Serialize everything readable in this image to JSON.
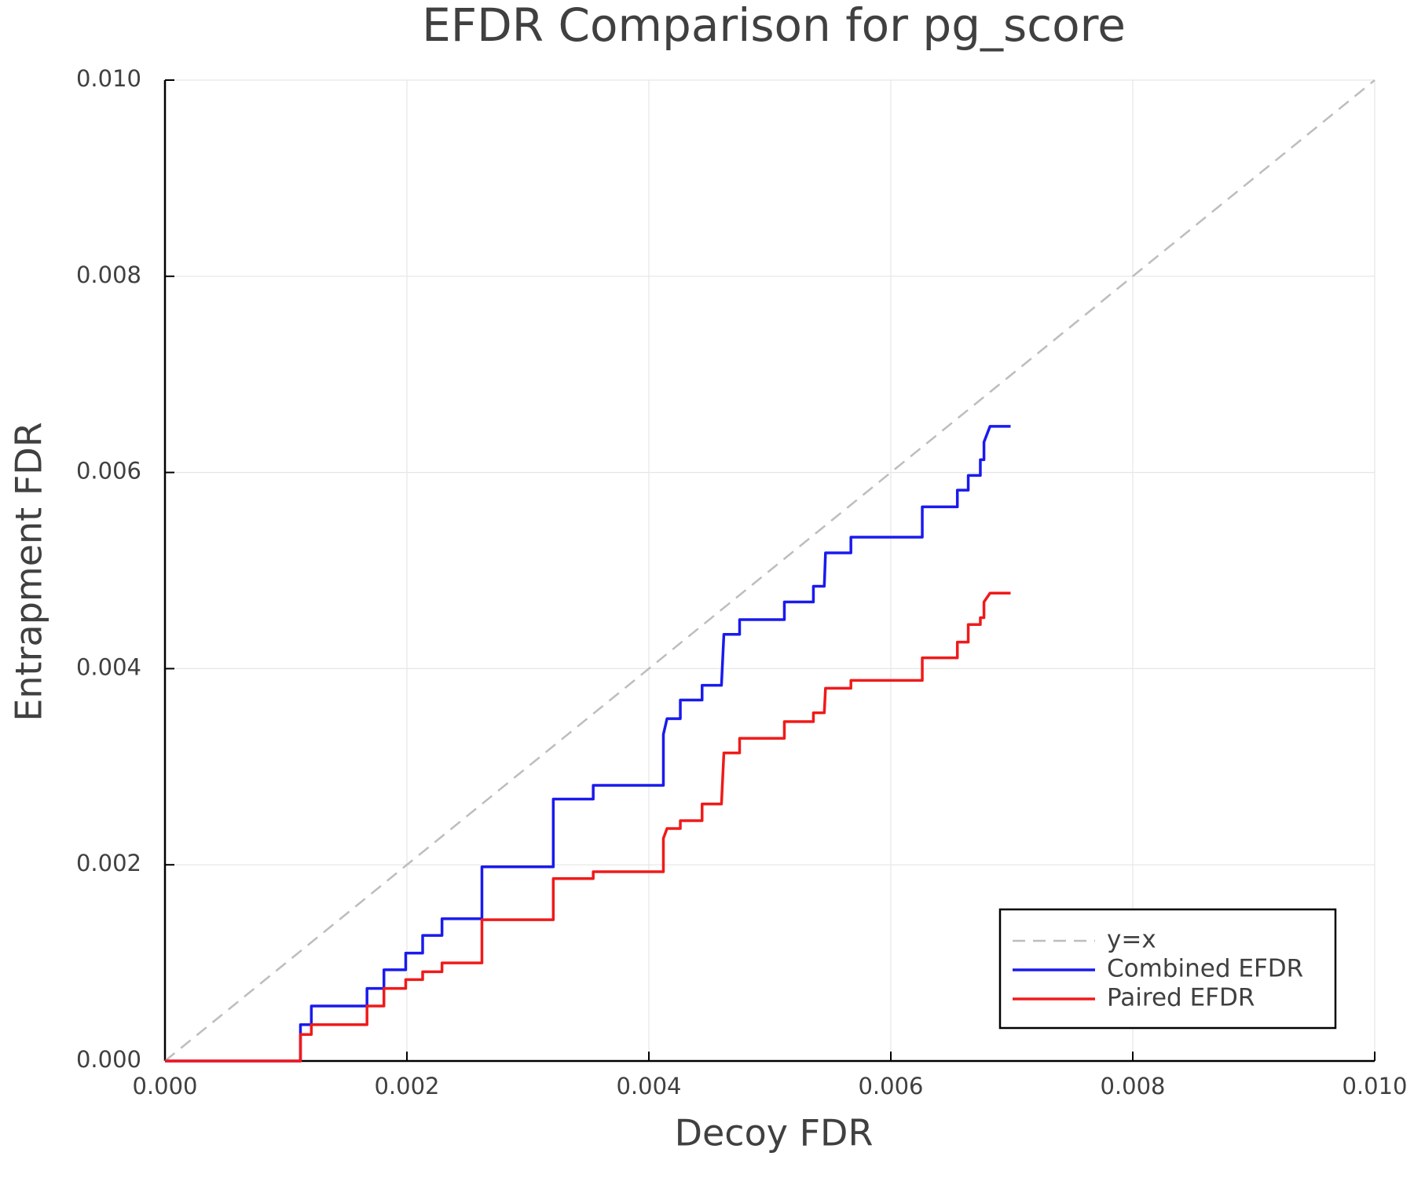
{
  "chart_data": {
    "type": "line",
    "title": "EFDR Comparison for pg_score",
    "x_label": "Decoy FDR",
    "y_label": "Entrapment FDR",
    "xlim": [
      0,
      0.01
    ],
    "ylim": [
      0,
      0.01
    ],
    "xticks": [
      {
        "value": 0,
        "label": "0.000"
      },
      {
        "value": 0.002,
        "label": "0.002"
      },
      {
        "value": 0.004,
        "label": "0.004"
      },
      {
        "value": 0.006,
        "label": "0.006"
      },
      {
        "value": 0.008,
        "label": "0.008"
      },
      {
        "value": 0.01,
        "label": "0.010"
      }
    ],
    "yticks": [
      {
        "value": 0,
        "label": "0.000"
      },
      {
        "value": 0.002,
        "label": "0.002"
      },
      {
        "value": 0.004,
        "label": "0.004"
      },
      {
        "value": 0.006,
        "label": "0.006"
      },
      {
        "value": 0.008,
        "label": "0.008"
      },
      {
        "value": 0.01,
        "label": "0.010"
      }
    ],
    "grid": true,
    "legend": "lower right",
    "series": [
      {
        "name": "y=x",
        "color": "#bdbdbd",
        "dashed": true,
        "x": [
          0,
          0.01
        ],
        "values": [
          0,
          0.01
        ]
      },
      {
        "name": "Combined EFDR",
        "color": "#1a1aee",
        "dashed": false,
        "x": [
          0,
          0.00112,
          0.00112,
          0.00121,
          0.00121,
          0.00167,
          0.00167,
          0.00181,
          0.00181,
          0.00199,
          0.00199,
          0.00213,
          0.00213,
          0.00229,
          0.00229,
          0.00262,
          0.00262,
          0.00321,
          0.00321,
          0.00354,
          0.00354,
          0.00412,
          0.00412,
          0.00415,
          0.00426,
          0.00426,
          0.00444,
          0.00444,
          0.0046,
          0.00462,
          0.00475,
          0.00475,
          0.00512,
          0.00512,
          0.00536,
          0.00536,
          0.00545,
          0.00546,
          0.00567,
          0.00567,
          0.00626,
          0.00626,
          0.00655,
          0.00655,
          0.00664,
          0.00664,
          0.00674,
          0.00674,
          0.00677,
          0.00677,
          0.00682,
          0.00699
        ],
        "values": [
          0,
          0,
          0.00037,
          0.00037,
          0.00056,
          0.00056,
          0.00074,
          0.00074,
          0.00093,
          0.00093,
          0.0011,
          0.0011,
          0.00128,
          0.00128,
          0.00145,
          0.00145,
          0.00198,
          0.00198,
          0.00267,
          0.00267,
          0.00281,
          0.00281,
          0.00333,
          0.00349,
          0.00349,
          0.00368,
          0.00368,
          0.00383,
          0.00383,
          0.00435,
          0.00435,
          0.0045,
          0.0045,
          0.00468,
          0.00468,
          0.00484,
          0.00484,
          0.00518,
          0.00518,
          0.00534,
          0.00534,
          0.00565,
          0.00565,
          0.00582,
          0.00582,
          0.00597,
          0.00597,
          0.00613,
          0.00613,
          0.00631,
          0.00647,
          0.00647
        ]
      },
      {
        "name": "Paired EFDR",
        "color": "#f01a1a",
        "dashed": false,
        "x": [
          0,
          0.00112,
          0.00112,
          0.00121,
          0.00121,
          0.00167,
          0.00167,
          0.00181,
          0.00181,
          0.00199,
          0.00199,
          0.00213,
          0.00213,
          0.00229,
          0.00229,
          0.00262,
          0.00262,
          0.00321,
          0.00321,
          0.00354,
          0.00354,
          0.00412,
          0.00412,
          0.00415,
          0.00426,
          0.00426,
          0.00444,
          0.00444,
          0.0046,
          0.00462,
          0.00475,
          0.00475,
          0.00512,
          0.00512,
          0.00536,
          0.00536,
          0.00545,
          0.00546,
          0.00567,
          0.00567,
          0.00626,
          0.00626,
          0.00655,
          0.00655,
          0.00664,
          0.00664,
          0.00674,
          0.00674,
          0.00677,
          0.00677,
          0.00682,
          0.00699
        ],
        "values": [
          0,
          0,
          0.00027,
          0.00027,
          0.00037,
          0.00037,
          0.00056,
          0.00056,
          0.00074,
          0.00074,
          0.00083,
          0.00083,
          0.00091,
          0.00091,
          0.001,
          0.001,
          0.00144,
          0.00144,
          0.00186,
          0.00186,
          0.00193,
          0.00193,
          0.00227,
          0.00237,
          0.00237,
          0.00245,
          0.00245,
          0.00262,
          0.00262,
          0.00314,
          0.00314,
          0.00329,
          0.00329,
          0.00346,
          0.00346,
          0.00355,
          0.00355,
          0.0038,
          0.0038,
          0.00388,
          0.00388,
          0.00411,
          0.00411,
          0.00427,
          0.00427,
          0.00445,
          0.00445,
          0.00452,
          0.00452,
          0.00468,
          0.00477,
          0.00477
        ]
      }
    ]
  }
}
